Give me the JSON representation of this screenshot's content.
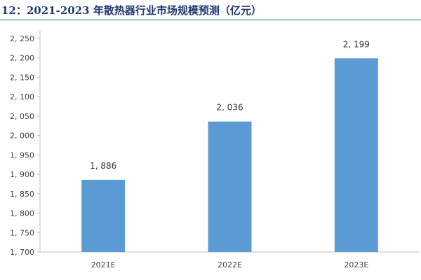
{
  "chart_data": {
    "type": "bar",
    "title": "12：2021-2023 年散热器行业市场规模预测（亿元）",
    "categories": [
      "2021E",
      "2022E",
      "2023E"
    ],
    "values": [
      1886,
      2036,
      2199
    ],
    "value_labels": [
      "1, 886",
      "2, 036",
      "2, 199"
    ],
    "ylim": [
      1700,
      2250
    ],
    "yticks": [
      1700,
      1750,
      1800,
      1850,
      1900,
      1950,
      2000,
      2050,
      2100,
      2150,
      2200,
      2250
    ],
    "ytick_labels": [
      "1, 700",
      "1, 750",
      "1, 800",
      "1, 850",
      "1, 900",
      "1, 950",
      "2, 000",
      "2, 050",
      "2, 100",
      "2, 150",
      "2, 200",
      "2, 250"
    ],
    "grid": false,
    "legend": "none",
    "bar_color": "#5b9bd5"
  }
}
